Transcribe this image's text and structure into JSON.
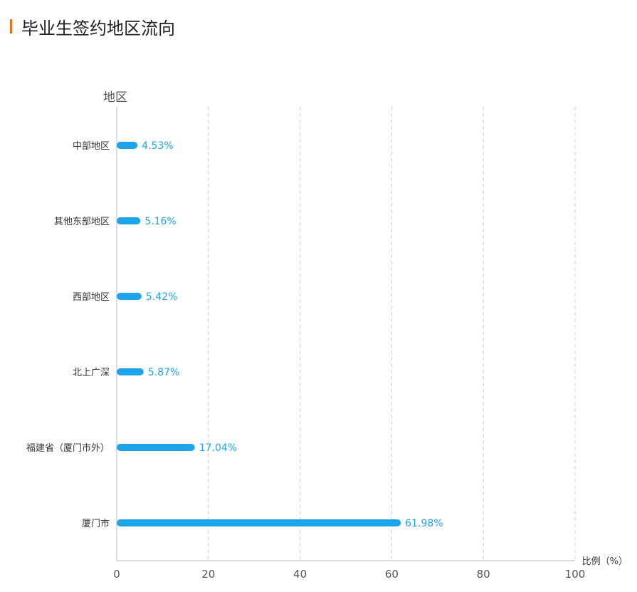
{
  "header": {
    "title": "毕业生签约地区流向"
  },
  "chart_data": {
    "type": "bar",
    "orientation": "horizontal",
    "title": "毕业生签约地区流向",
    "ylabel": "地区",
    "xlabel": "比例（%）",
    "categories": [
      "中部地区",
      "其他东部地区",
      "西部地区",
      "北上广深",
      "福建省（厦门市外）",
      "厦门市"
    ],
    "values": [
      4.53,
      5.16,
      5.42,
      5.87,
      17.04,
      61.98
    ],
    "data_labels": [
      "4.53%",
      "5.16%",
      "5.42%",
      "5.87%",
      "17.04%",
      "61.98%"
    ],
    "xlim": [
      0,
      100
    ],
    "xticks": [
      "0",
      "20",
      "40",
      "60",
      "80",
      "100"
    ],
    "grid": "vertical dashed",
    "bar_color": "#1ea4e9",
    "label_color": "#1ea4e9",
    "accent_color": "#e8711e"
  }
}
